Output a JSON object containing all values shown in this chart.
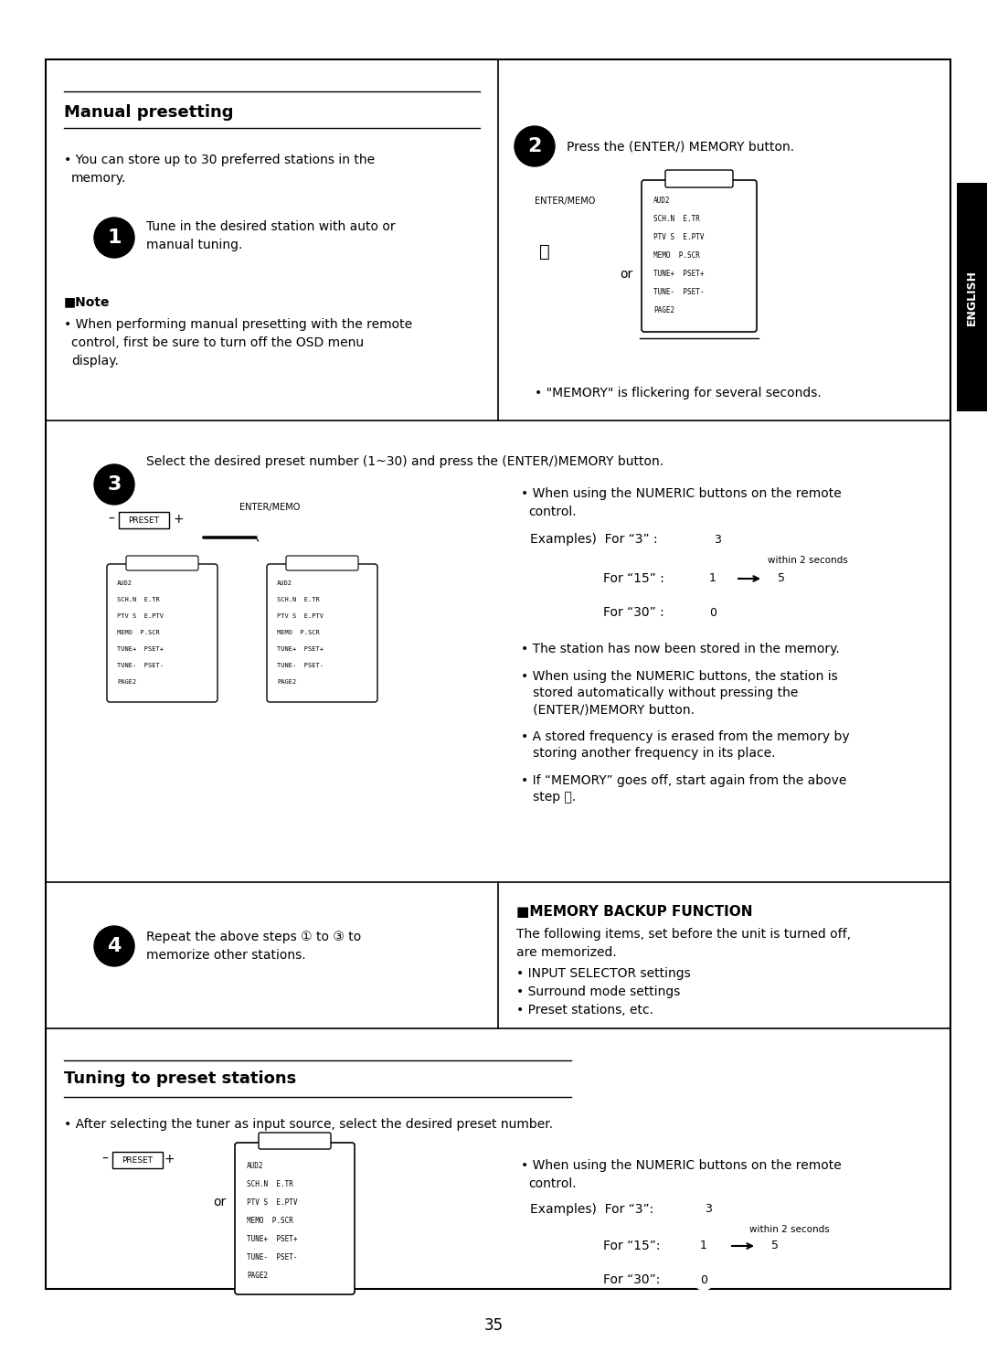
{
  "bg_color": "#ffffff",
  "border_color": "#000000",
  "english_tab_color": "#000000",
  "english_tab_text": "ENGLISH",
  "page_number": "35",
  "sections": {
    "manual_presetting_title": "Manual presetting",
    "tuning_title": "Tuning to preset stations"
  },
  "text_color": "#000000",
  "gray_color": "#888888"
}
